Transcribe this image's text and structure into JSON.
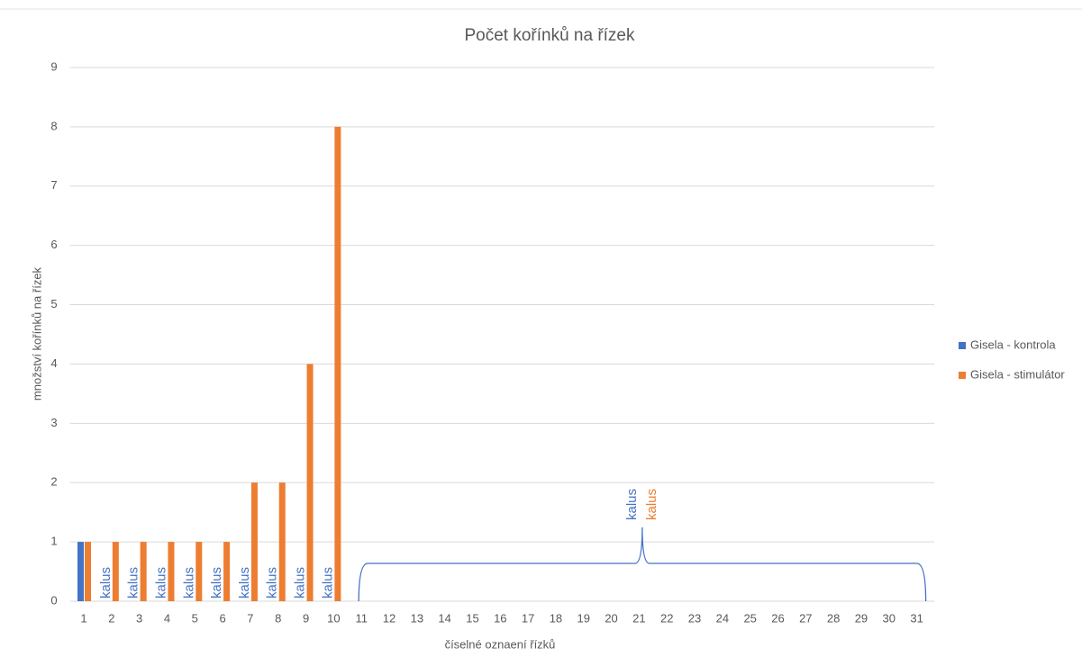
{
  "chart_data": {
    "type": "bar",
    "title": "Počet kořínků na řízek",
    "x_label": "číselné oznaení řízků",
    "y_label": "množství kořínků na řízek",
    "categories": [
      1,
      2,
      3,
      4,
      5,
      6,
      7,
      8,
      9,
      10,
      11,
      12,
      13,
      14,
      15,
      16,
      17,
      18,
      19,
      20,
      21,
      22,
      23,
      24,
      25,
      26,
      27,
      28,
      29,
      30,
      31
    ],
    "series": [
      {
        "name": "Gisela - kontrola",
        "color": "#4472c4",
        "values": [
          1,
          0,
          0,
          0,
          0,
          0,
          0,
          0,
          0,
          0,
          0,
          0,
          0,
          0,
          0,
          0,
          0,
          0,
          0,
          0,
          0,
          0,
          0,
          0,
          0,
          0,
          0,
          0,
          0,
          0,
          0
        ]
      },
      {
        "name": "Gisela - stimulátor",
        "color": "#ed7d31",
        "values": [
          1,
          1,
          1,
          1,
          1,
          1,
          2,
          2,
          4,
          8,
          0,
          0,
          0,
          0,
          0,
          0,
          0,
          0,
          0,
          0,
          0,
          0,
          0,
          0,
          0,
          0,
          0,
          0,
          0,
          0,
          0
        ]
      }
    ],
    "ylim": [
      0,
      9
    ],
    "yticks": [
      0,
      1,
      2,
      3,
      4,
      5,
      6,
      7,
      8,
      9
    ],
    "grid": true,
    "legend": "right",
    "annotations": [
      {
        "text": "kalus",
        "category": 2,
        "color": "#4472c4"
      },
      {
        "text": "kalus",
        "category": 3,
        "color": "#4472c4"
      },
      {
        "text": "kalus",
        "category": 4,
        "color": "#4472c4"
      },
      {
        "text": "kalus",
        "category": 5,
        "color": "#4472c4"
      },
      {
        "text": "kalus",
        "category": 6,
        "color": "#4472c4"
      },
      {
        "text": "kalus",
        "category": 7,
        "color": "#4472c4"
      },
      {
        "text": "kalus",
        "category": 8,
        "color": "#4472c4"
      },
      {
        "text": "kalus",
        "category": 9,
        "color": "#4472c4"
      },
      {
        "text": "kalus",
        "category": 10,
        "color": "#4472c4"
      }
    ],
    "brace": {
      "span": [
        11,
        31
      ],
      "labels": [
        {
          "text": "kalus",
          "color": "#4472c4"
        },
        {
          "text": "kalus",
          "color": "#ed7d31"
        }
      ]
    }
  }
}
